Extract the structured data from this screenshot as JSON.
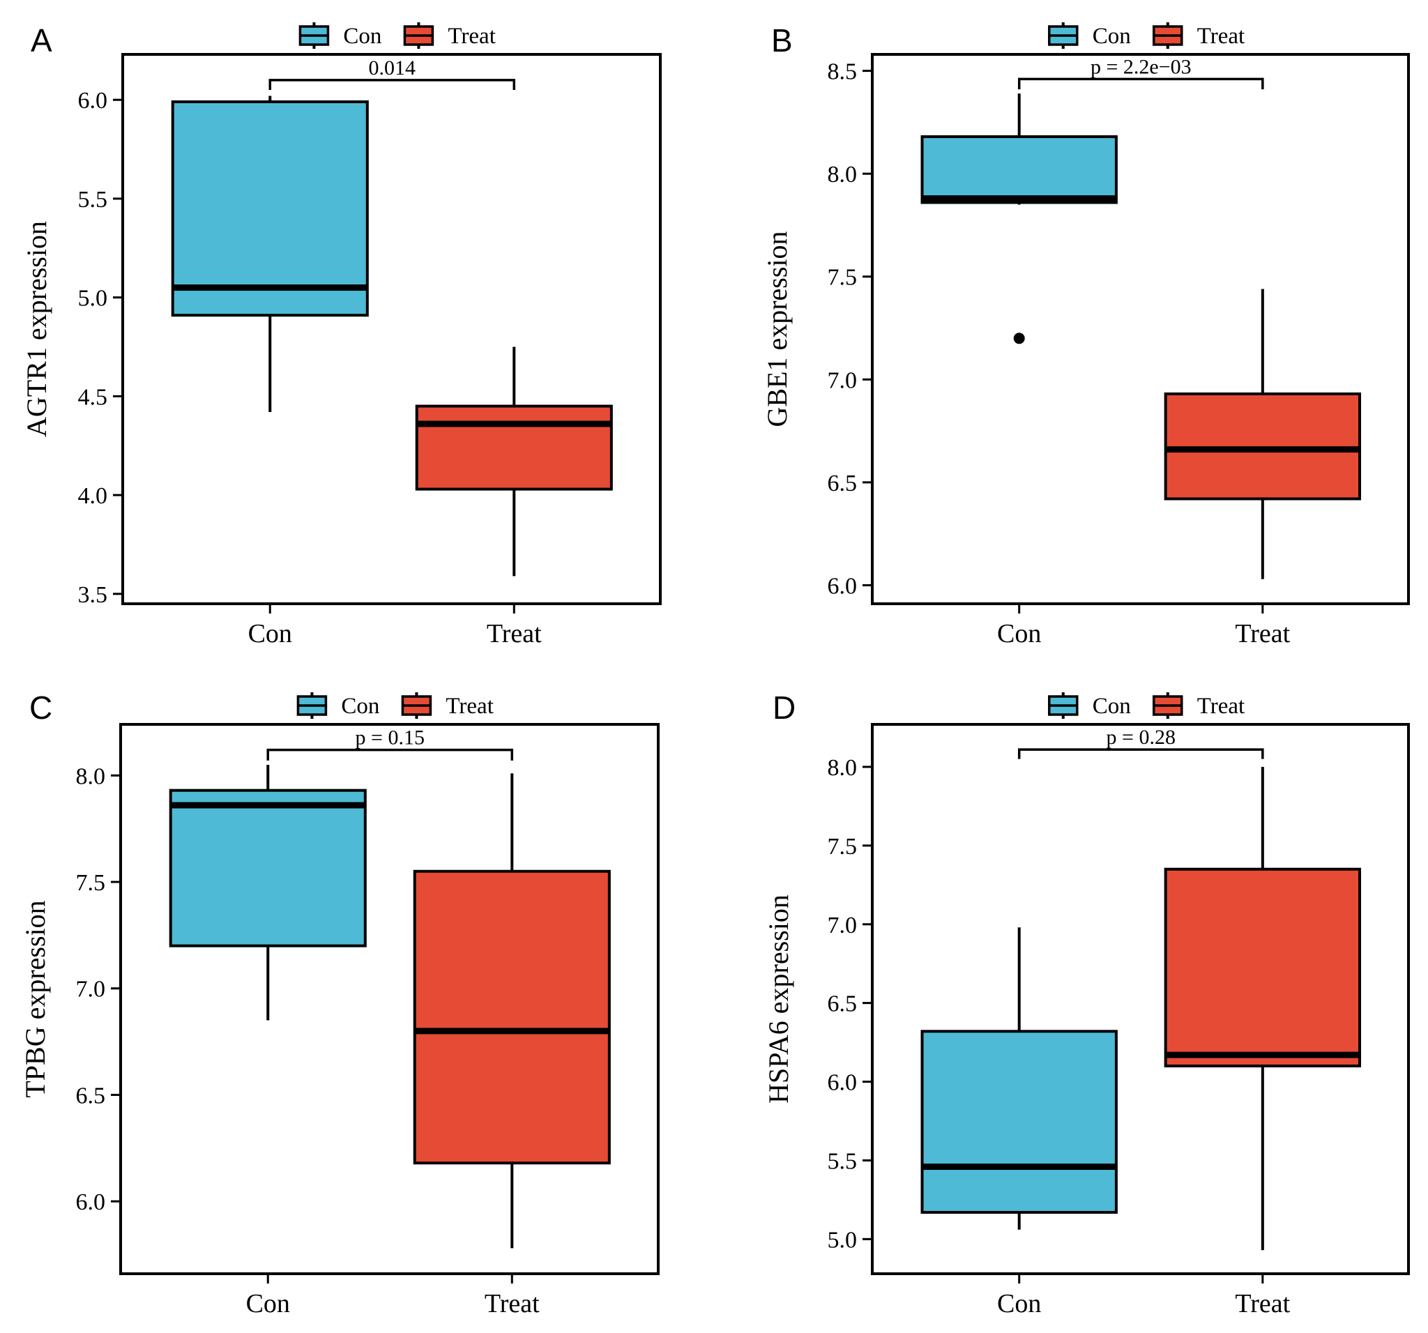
{
  "colors": {
    "con": "#4EBAD5",
    "treat": "#E64B35",
    "ink": "#000000"
  },
  "legend": {
    "items": [
      {
        "label": "Con",
        "color": "#4EBAD5"
      },
      {
        "label": "Treat",
        "color": "#E64B35"
      }
    ]
  },
  "chart_data": [
    {
      "type": "box",
      "panel": "A",
      "ylabel": "AGTR1 expression",
      "categories": [
        "Con",
        "Treat"
      ],
      "ylim": [
        3.45,
        6.23
      ],
      "yticks": [
        3.5,
        4.0,
        4.5,
        5.0,
        5.5,
        6.0
      ],
      "ytick_labels": [
        "3.5",
        "4.0",
        "4.5",
        "5.0",
        "5.5",
        "6.0"
      ],
      "boxes": [
        {
          "group": "Con",
          "whisker_low": 4.42,
          "q1": 4.91,
          "median": 5.05,
          "q3": 5.99,
          "whisker_high": 6.02,
          "outliers": []
        },
        {
          "group": "Treat",
          "whisker_low": 3.59,
          "q1": 4.03,
          "median": 4.36,
          "q3": 4.45,
          "whisker_high": 4.75,
          "outliers": []
        }
      ],
      "significance": {
        "label": "0.014",
        "y_line": 6.1,
        "y_tick_end": 6.05
      }
    },
    {
      "type": "box",
      "panel": "B",
      "ylabel": "GBE1 expression",
      "categories": [
        "Con",
        "Treat"
      ],
      "ylim": [
        5.91,
        8.58
      ],
      "yticks": [
        6.0,
        6.5,
        7.0,
        7.5,
        8.0,
        8.5
      ],
      "ytick_labels": [
        "6.0",
        "6.5",
        "7.0",
        "7.5",
        "8.0",
        "8.5"
      ],
      "boxes": [
        {
          "group": "Con",
          "whisker_low": 7.85,
          "q1": 7.86,
          "median": 7.88,
          "q3": 8.18,
          "whisker_high": 8.39,
          "outliers": [
            7.2
          ]
        },
        {
          "group": "Treat",
          "whisker_low": 6.03,
          "q1": 6.42,
          "median": 6.66,
          "q3": 6.93,
          "whisker_high": 7.44,
          "outliers": []
        }
      ],
      "significance": {
        "label": "p = 2.2e−03",
        "y_line": 8.46,
        "y_tick_end": 8.41
      }
    },
    {
      "type": "box",
      "panel": "C",
      "ylabel": "TPBG expression",
      "categories": [
        "Con",
        "Treat"
      ],
      "ylim": [
        5.66,
        8.24
      ],
      "yticks": [
        6.0,
        6.5,
        7.0,
        7.5,
        8.0
      ],
      "ytick_labels": [
        "6.0",
        "6.5",
        "7.0",
        "7.5",
        "8.0"
      ],
      "boxes": [
        {
          "group": "Con",
          "whisker_low": 6.85,
          "q1": 7.2,
          "median": 7.86,
          "q3": 7.93,
          "whisker_high": 8.05,
          "outliers": []
        },
        {
          "group": "Treat",
          "whisker_low": 5.78,
          "q1": 6.18,
          "median": 6.8,
          "q3": 7.55,
          "whisker_high": 8.01,
          "outliers": []
        }
      ],
      "significance": {
        "label": "p = 0.15",
        "y_line": 8.12,
        "y_tick_end": 8.07
      }
    },
    {
      "type": "box",
      "panel": "D",
      "ylabel": "HSPA6 expression",
      "categories": [
        "Con",
        "Treat"
      ],
      "ylim": [
        4.78,
        8.27
      ],
      "yticks": [
        5.0,
        5.5,
        6.0,
        6.5,
        7.0,
        7.5,
        8.0
      ],
      "ytick_labels": [
        "5.0",
        "5.5",
        "6.0",
        "6.5",
        "7.0",
        "7.5",
        "8.0"
      ],
      "boxes": [
        {
          "group": "Con",
          "whisker_low": 5.06,
          "q1": 5.17,
          "median": 5.46,
          "q3": 6.32,
          "whisker_high": 6.98,
          "outliers": []
        },
        {
          "group": "Treat",
          "whisker_low": 4.93,
          "q1": 6.1,
          "median": 6.17,
          "q3": 7.35,
          "whisker_high": 8.0,
          "outliers": []
        }
      ],
      "significance": {
        "label": "p = 0.28",
        "y_line": 8.11,
        "y_tick_end": 8.05
      }
    }
  ]
}
